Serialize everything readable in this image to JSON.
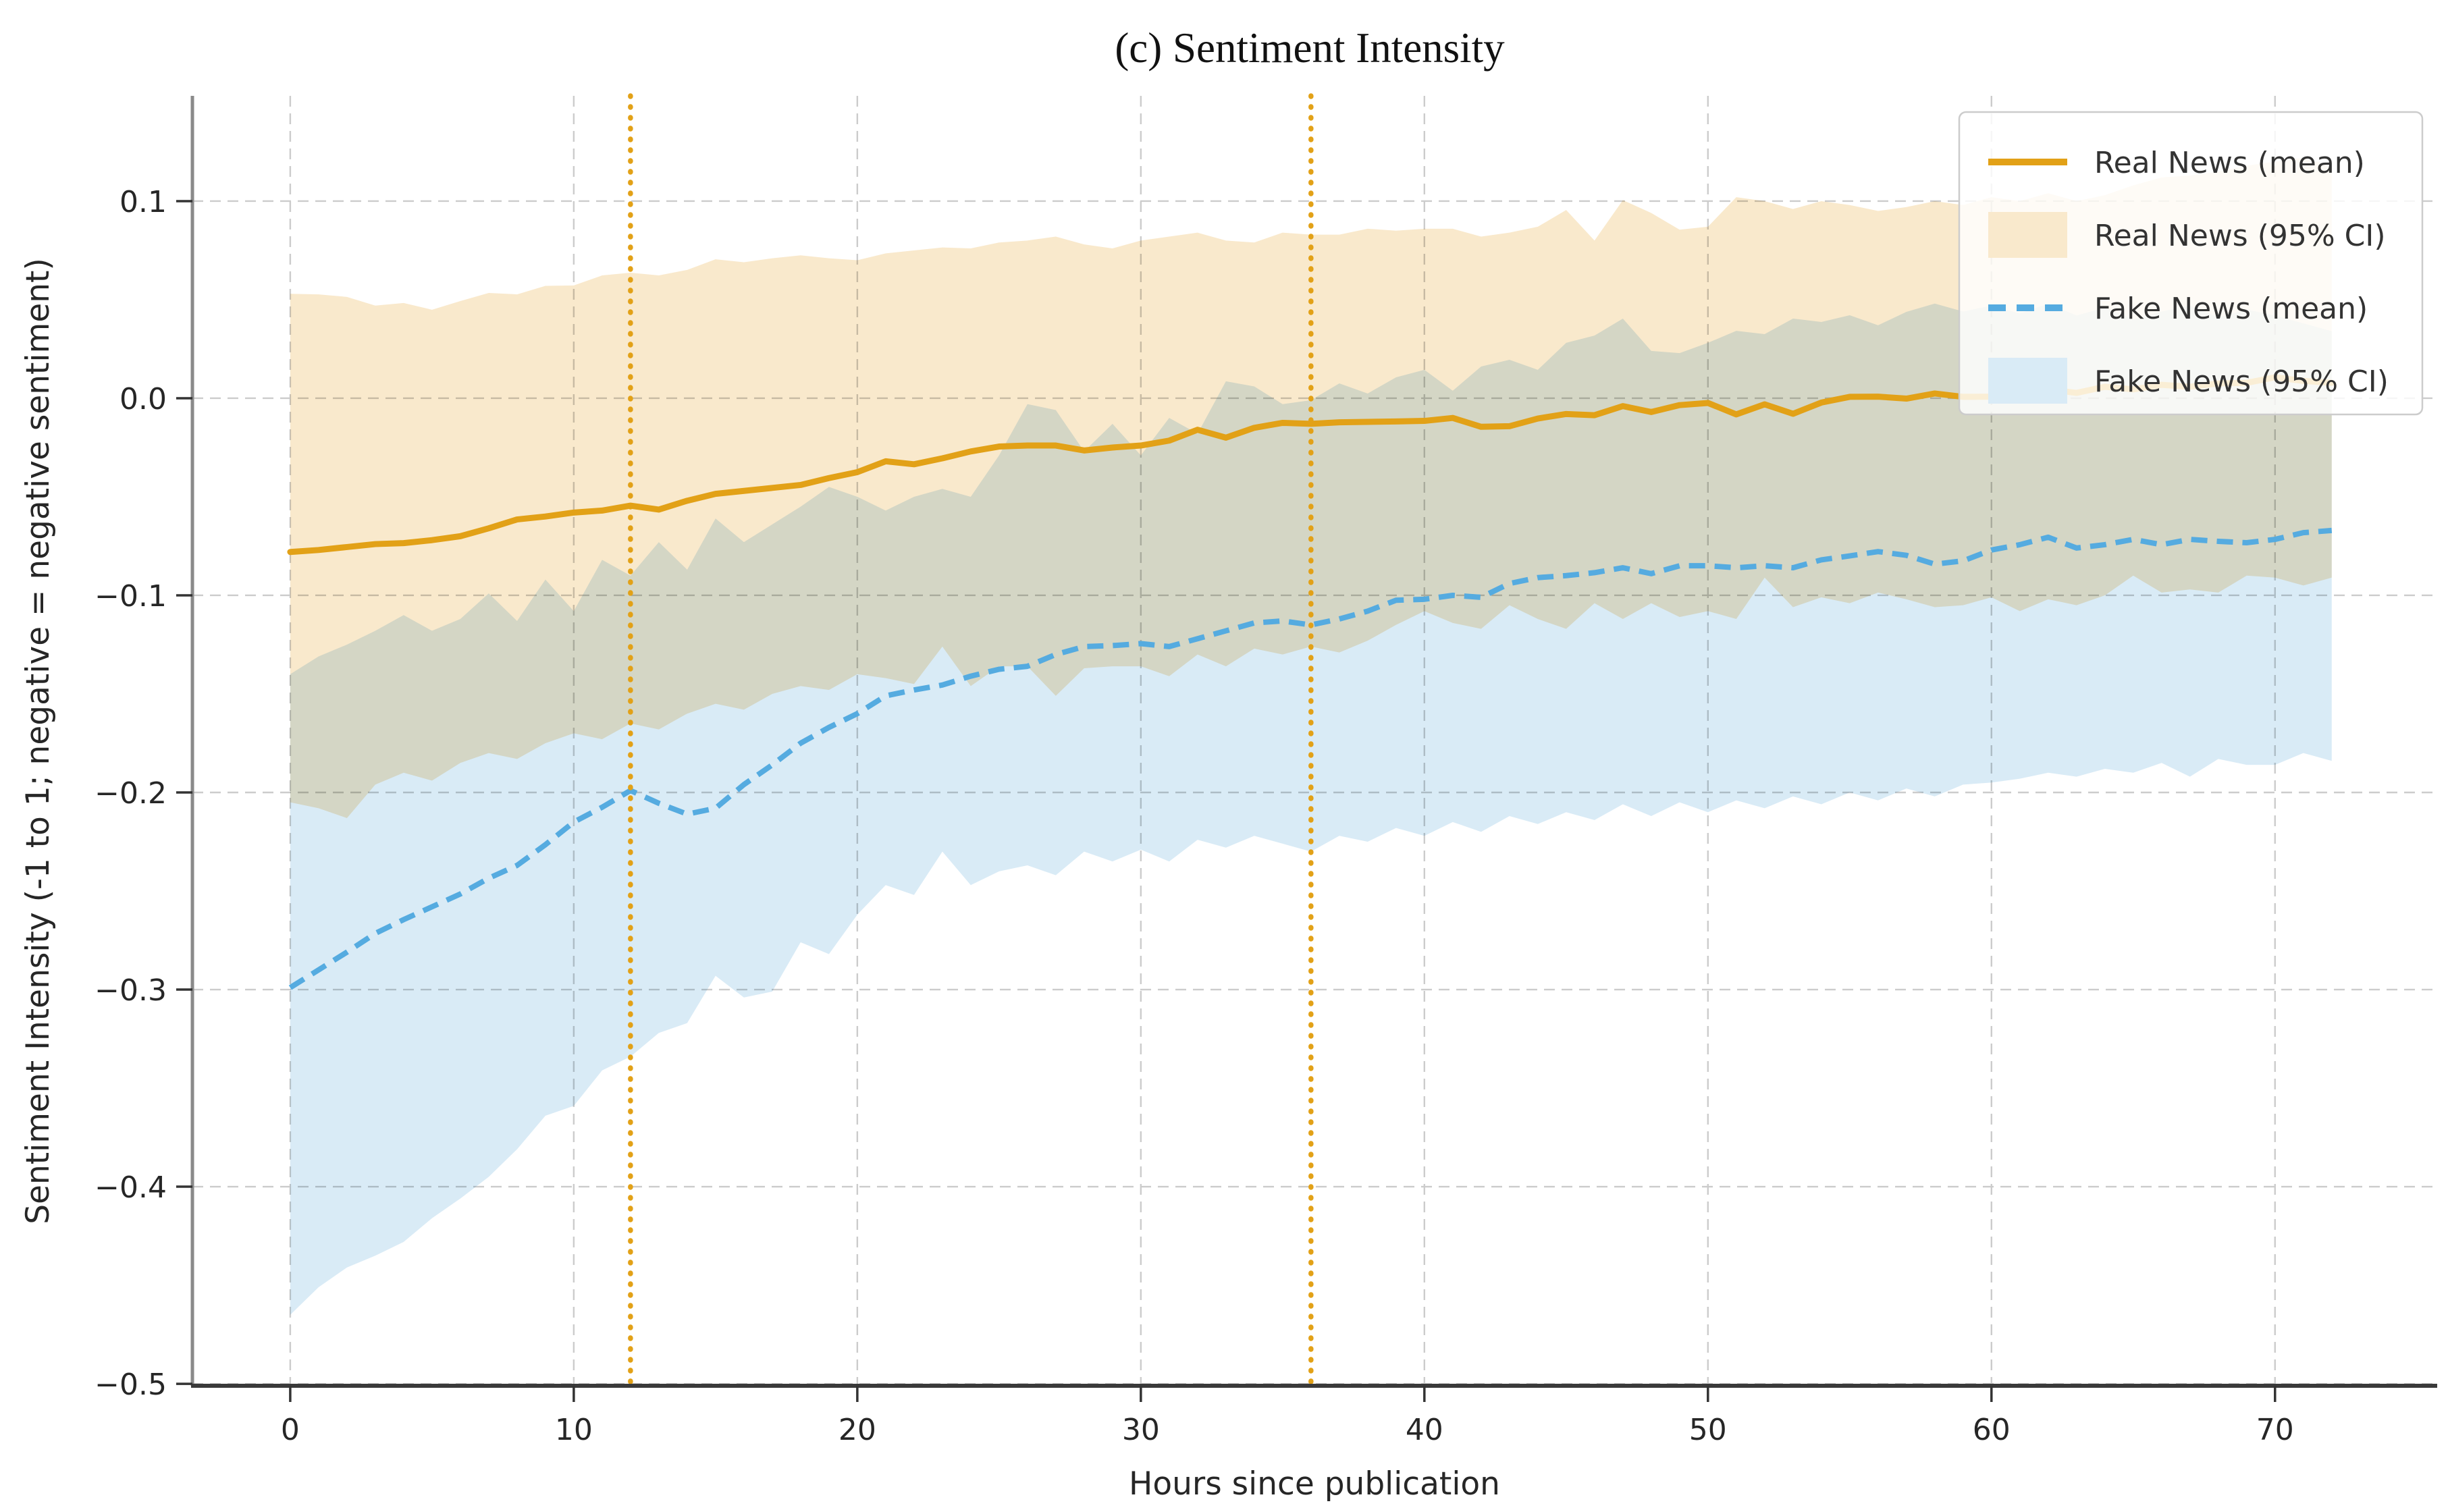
{
  "figure": {
    "background": "#ffffff"
  },
  "colors": {
    "real_line": "#E2A117",
    "real_band": "#F9E9CC",
    "fake_line": "#55ABE0",
    "fake_band": "#D9EBF6",
    "grid": "#CCCCCC",
    "event_line": "#E2A117",
    "spine_left": "#8A8A8A",
    "spine_bottom": "#3A3A3A",
    "tick_text": "#262626",
    "legend_border": "#CCCCCC"
  },
  "legend": {
    "position": "upper right",
    "items": [
      {
        "label": "Real News (mean)",
        "swatch": "line",
        "color": "#E2A117",
        "dashed": false
      },
      {
        "label": "Real News (95% CI)",
        "swatch": "patch",
        "color": "#F9E9CC",
        "dashed": false
      },
      {
        "label": "Fake News (mean)",
        "swatch": "line",
        "color": "#55ABE0",
        "dashed": true
      },
      {
        "label": "Fake News (95% CI)",
        "swatch": "patch",
        "color": "#D9EBF6",
        "dashed": false
      }
    ]
  },
  "chart_data": {
    "type": "line",
    "title": "(c) Sentiment Intensity",
    "xlabel": "Hours since publication",
    "ylabel": "Sentiment Intensity (-1 to 1; negative = negative sentiment)",
    "grid": true,
    "xlim": [
      -3.45,
      75.72
    ],
    "ylim": [
      -0.501,
      0.1534
    ],
    "x_ticks": [
      0,
      10,
      20,
      30,
      40,
      50,
      60,
      70
    ],
    "x_tick_labels": [
      "0",
      "10",
      "20",
      "30",
      "40",
      "50",
      "60",
      "70"
    ],
    "y_ticks": [
      0.1,
      0.0,
      -0.1,
      -0.2,
      -0.3,
      -0.4,
      -0.5
    ],
    "y_tick_labels": [
      "0.1",
      "0.0",
      "−0.1",
      "−0.2",
      "−0.3",
      "−0.4",
      "−0.5"
    ],
    "event_lines_x": [
      12,
      36
    ],
    "x": [
      0,
      1,
      2,
      3,
      4,
      5,
      6,
      7,
      8,
      9,
      10,
      11,
      12,
      13,
      14,
      15,
      16,
      17,
      18,
      19,
      20,
      21,
      22,
      23,
      24,
      25,
      26,
      27,
      28,
      29,
      30,
      31,
      32,
      33,
      34,
      35,
      36,
      37,
      38,
      39,
      40,
      41,
      42,
      43,
      44,
      45,
      46,
      47,
      48,
      49,
      50,
      51,
      52,
      53,
      54,
      55,
      56,
      57,
      58,
      59,
      60,
      61,
      62,
      63,
      64,
      65,
      66,
      67,
      68,
      69,
      70,
      71,
      72
    ],
    "series": [
      {
        "name": "Real News (mean)",
        "values": [
          -0.078,
          -0.077,
          -0.0755,
          -0.074,
          -0.0735,
          -0.072,
          -0.07,
          -0.066,
          -0.0615,
          -0.06,
          -0.058,
          -0.057,
          -0.0545,
          -0.0565,
          -0.052,
          -0.0485,
          -0.047,
          -0.0455,
          -0.044,
          -0.0405,
          -0.0375,
          -0.032,
          -0.0335,
          -0.0305,
          -0.027,
          -0.0245,
          -0.024,
          -0.024,
          -0.0265,
          -0.025,
          -0.024,
          -0.0215,
          -0.016,
          -0.02,
          -0.015,
          -0.0125,
          -0.013,
          -0.0122,
          -0.012,
          -0.0118,
          -0.0115,
          -0.01,
          -0.0145,
          -0.0142,
          -0.0103,
          -0.008,
          -0.0086,
          -0.004,
          -0.007,
          -0.0035,
          -0.0024,
          -0.0082,
          -0.0031,
          -0.0079,
          -0.0022,
          0.0007,
          0.0008,
          -0.0002,
          0.0024,
          0.0007,
          0.0008,
          0.0027,
          0.0045,
          0.0027,
          0.0058,
          0.0045,
          0.0068,
          0.0058,
          0.0075,
          0.0078,
          0.0106,
          0.0088,
          0.0078
        ]
      },
      {
        "name": "Real News (95% CI) upper",
        "values": [
          0.053,
          0.0527,
          0.0514,
          0.047,
          0.0483,
          0.0449,
          0.0493,
          0.0534,
          0.0527,
          0.057,
          0.0572,
          0.0623,
          0.0637,
          0.0623,
          0.0651,
          0.0705,
          0.069,
          0.071,
          0.0725,
          0.071,
          0.07,
          0.0735,
          0.075,
          0.0765,
          0.076,
          0.079,
          0.08,
          0.082,
          0.078,
          0.076,
          0.08,
          0.082,
          0.084,
          0.08,
          0.079,
          0.084,
          0.083,
          0.083,
          0.086,
          0.085,
          0.086,
          0.086,
          0.082,
          0.084,
          0.087,
          0.0955,
          0.08,
          0.1005,
          0.094,
          0.0855,
          0.087,
          0.102,
          0.1,
          0.096,
          0.1,
          0.098,
          0.095,
          0.097,
          0.1,
          0.098,
          0.102,
          0.1,
          0.104,
          0.1,
          0.103,
          0.108,
          0.112,
          0.113,
          0.115,
          0.118,
          0.12,
          0.122,
          0.118
        ]
      },
      {
        "name": "Real News (95% CI) lower",
        "values": [
          -0.205,
          -0.208,
          -0.213,
          -0.196,
          -0.19,
          -0.194,
          -0.185,
          -0.18,
          -0.183,
          -0.175,
          -0.17,
          -0.173,
          -0.165,
          -0.168,
          -0.16,
          -0.155,
          -0.158,
          -0.15,
          -0.146,
          -0.148,
          -0.14,
          -0.142,
          -0.145,
          -0.126,
          -0.146,
          -0.136,
          -0.136,
          -0.151,
          -0.137,
          -0.136,
          -0.136,
          -0.141,
          -0.13,
          -0.136,
          -0.127,
          -0.13,
          -0.126,
          -0.129,
          -0.123,
          -0.115,
          -0.108,
          -0.114,
          -0.117,
          -0.105,
          -0.112,
          -0.117,
          -0.104,
          -0.112,
          -0.104,
          -0.111,
          -0.108,
          -0.112,
          -0.091,
          -0.106,
          -0.101,
          -0.104,
          -0.0986,
          -0.102,
          -0.106,
          -0.105,
          -0.101,
          -0.108,
          -0.102,
          -0.105,
          -0.1,
          -0.09,
          -0.0986,
          -0.097,
          -0.0986,
          -0.09,
          -0.091,
          -0.095,
          -0.091
        ]
      },
      {
        "name": "Fake News (mean)",
        "values": [
          -0.299,
          -0.29,
          -0.281,
          -0.2715,
          -0.2645,
          -0.258,
          -0.2515,
          -0.2435,
          -0.237,
          -0.2265,
          -0.215,
          -0.2075,
          -0.199,
          -0.2055,
          -0.211,
          -0.208,
          -0.196,
          -0.186,
          -0.175,
          -0.167,
          -0.16,
          -0.151,
          -0.148,
          -0.1455,
          -0.141,
          -0.1375,
          -0.136,
          -0.13,
          -0.126,
          -0.1255,
          -0.1245,
          -0.126,
          -0.122,
          -0.118,
          -0.114,
          -0.113,
          -0.115,
          -0.112,
          -0.108,
          -0.1025,
          -0.102,
          -0.1,
          -0.101,
          -0.094,
          -0.091,
          -0.09,
          -0.0885,
          -0.086,
          -0.089,
          -0.085,
          -0.085,
          -0.086,
          -0.085,
          -0.086,
          -0.082,
          -0.08,
          -0.0778,
          -0.0797,
          -0.0842,
          -0.0825,
          -0.077,
          -0.0743,
          -0.0705,
          -0.076,
          -0.0743,
          -0.0716,
          -0.0743,
          -0.0716,
          -0.0726,
          -0.0733,
          -0.0716,
          -0.0682,
          -0.0671
        ]
      },
      {
        "name": "Fake News (95% CI) upper",
        "values": [
          -0.14,
          -0.131,
          -0.125,
          -0.118,
          -0.11,
          -0.118,
          -0.112,
          -0.099,
          -0.113,
          -0.092,
          -0.108,
          -0.082,
          -0.09,
          -0.073,
          -0.087,
          -0.061,
          -0.073,
          -0.064,
          -0.055,
          -0.045,
          -0.05,
          -0.057,
          -0.05,
          -0.046,
          -0.05,
          -0.029,
          -0.003,
          -0.006,
          -0.027,
          -0.013,
          -0.029,
          -0.01,
          -0.018,
          0.0086,
          0.006,
          -0.003,
          -0.001,
          0.0075,
          0.0024,
          0.0106,
          0.0144,
          0.0038,
          0.0161,
          0.0195,
          0.0144,
          0.0281,
          0.0318,
          0.0404,
          0.024,
          0.0229,
          0.0281,
          0.0342,
          0.0325,
          0.0404,
          0.0387,
          0.0421,
          0.037,
          0.0438,
          0.048,
          0.044,
          0.047,
          0.043,
          0.048,
          0.042,
          0.046,
          0.04,
          0.044,
          0.047,
          0.041,
          0.045,
          0.042,
          0.038,
          0.034
        ]
      },
      {
        "name": "Fake News (95% CI) lower",
        "values": [
          -0.465,
          -0.451,
          -0.441,
          -0.435,
          -0.428,
          -0.416,
          -0.406,
          -0.395,
          -0.381,
          -0.364,
          -0.359,
          -0.341,
          -0.334,
          -0.322,
          -0.317,
          -0.293,
          -0.304,
          -0.301,
          -0.276,
          -0.282,
          -0.262,
          -0.247,
          -0.252,
          -0.23,
          -0.247,
          -0.24,
          -0.237,
          -0.242,
          -0.23,
          -0.235,
          -0.229,
          -0.235,
          -0.224,
          -0.228,
          -0.222,
          -0.226,
          -0.23,
          -0.222,
          -0.225,
          -0.218,
          -0.222,
          -0.215,
          -0.22,
          -0.212,
          -0.216,
          -0.21,
          -0.214,
          -0.206,
          -0.212,
          -0.205,
          -0.21,
          -0.204,
          -0.208,
          -0.202,
          -0.206,
          -0.2,
          -0.204,
          -0.198,
          -0.202,
          -0.196,
          -0.195,
          -0.193,
          -0.19,
          -0.192,
          -0.188,
          -0.19,
          -0.185,
          -0.192,
          -0.183,
          -0.186,
          -0.186,
          -0.18,
          -0.184
        ]
      }
    ]
  }
}
